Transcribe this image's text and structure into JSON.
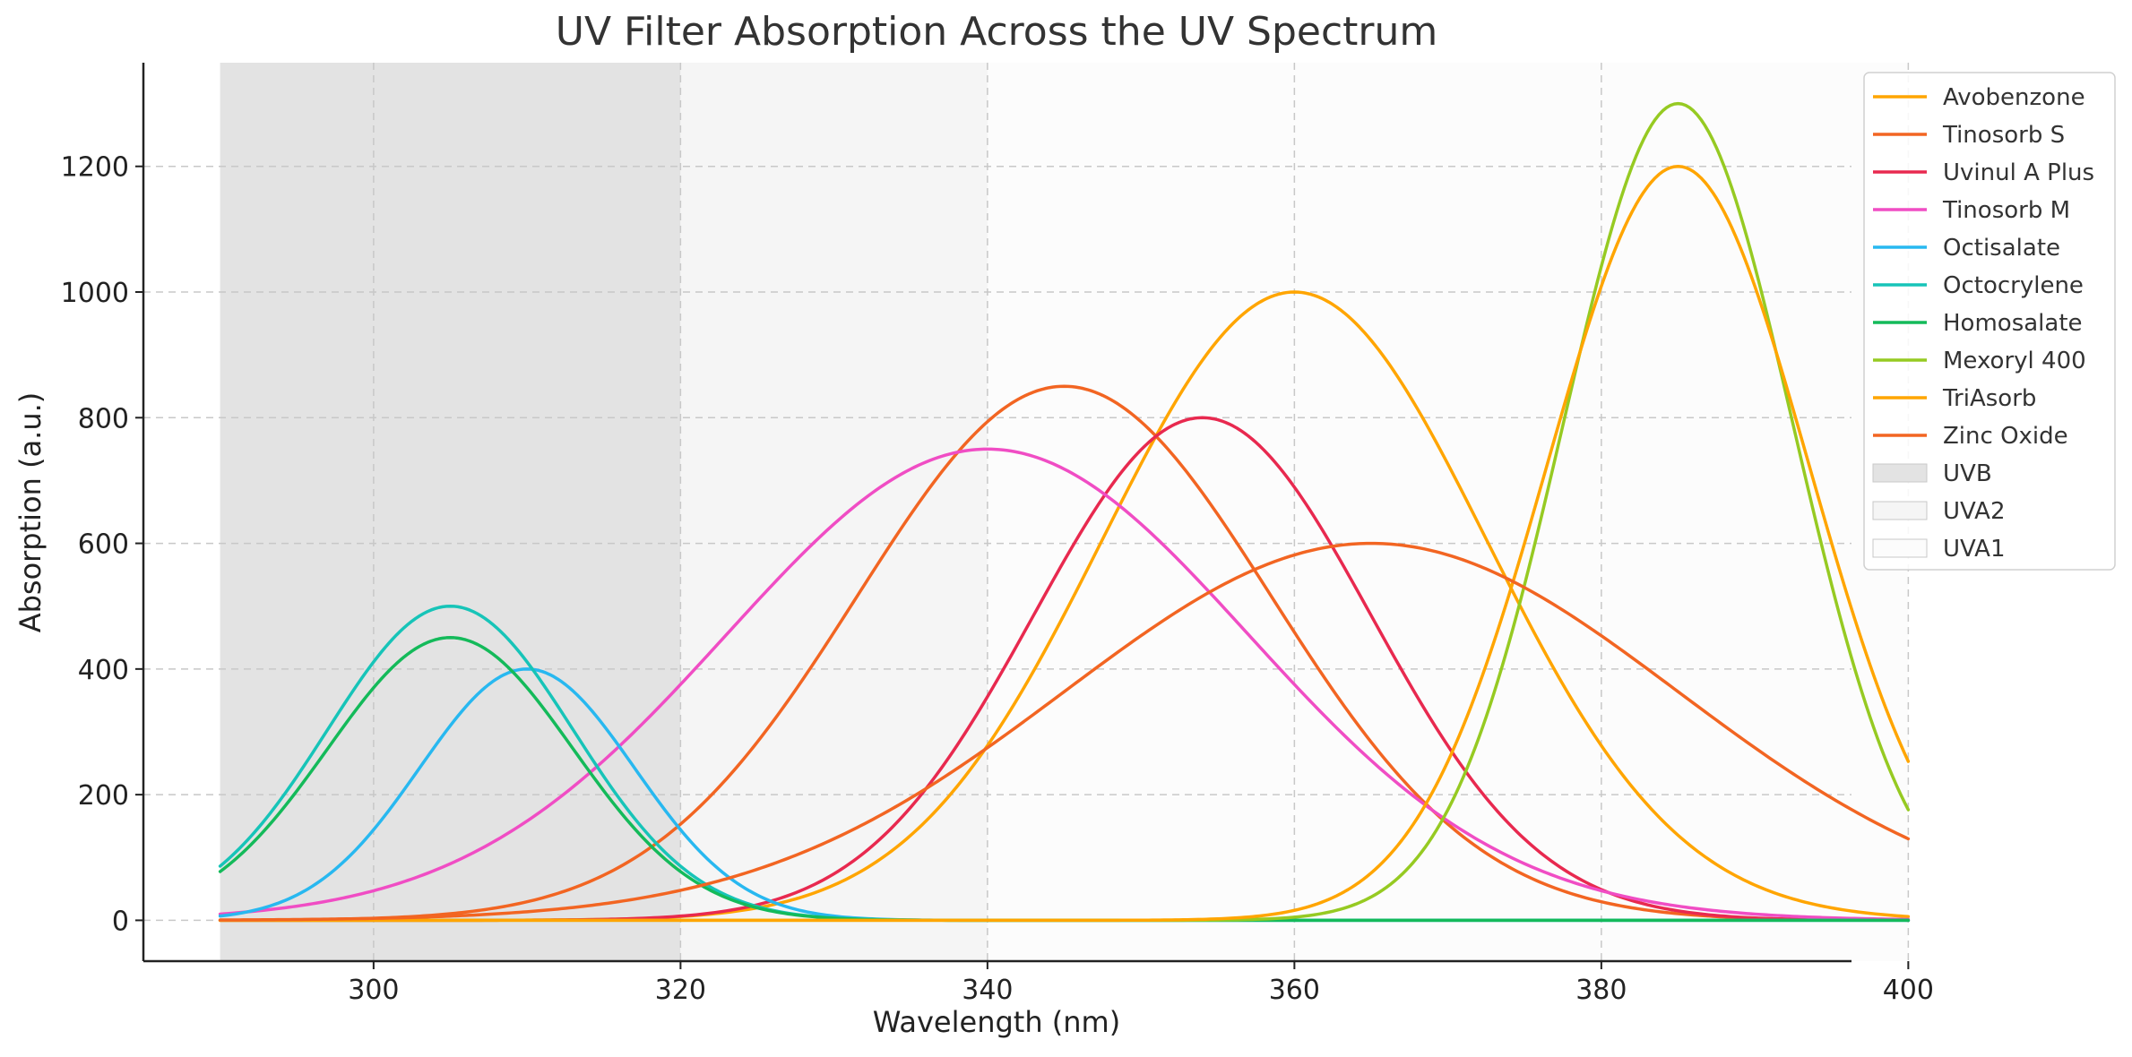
{
  "chart_data": {
    "type": "line",
    "title": "UV Filter Absorption Across the UV Spectrum",
    "xlabel": "Wavelength (nm)",
    "ylabel": "Absorption (a.u.)",
    "xlim": [
      285,
      396.3
    ],
    "ylim": [
      -65,
      1365
    ],
    "xticks": [
      300,
      320,
      340,
      360,
      380,
      400
    ],
    "yticks": [
      0,
      200,
      400,
      600,
      800,
      1000,
      1200
    ],
    "grid": true,
    "legend_position": "outside top-right",
    "x_range": [
      290,
      400
    ],
    "regions": [
      {
        "name": "UVB",
        "x_start": 290,
        "x_end": 320,
        "color": "#e3e3e3"
      },
      {
        "name": "UVA2",
        "x_start": 320,
        "x_end": 340,
        "color": "#f5f5f5"
      },
      {
        "name": "UVA1",
        "x_start": 340,
        "x_end": 400,
        "color": "#fcfcfc"
      }
    ],
    "series": [
      {
        "name": "Avobenzone",
        "color": "#FFA500",
        "peak": 360,
        "amplitude": 1000,
        "sigma": 12.5
      },
      {
        "name": "Tinosorb S",
        "color": "#F26522",
        "peak": 345,
        "amplitude": 850,
        "sigma": 13.5
      },
      {
        "name": "Uvinul A Plus",
        "color": "#E8294F",
        "peak": 354,
        "amplitude": 800,
        "sigma": 11
      },
      {
        "name": "Tinosorb M",
        "color": "#F04DC4",
        "peak": 340,
        "amplitude": 750,
        "sigma": 17
      },
      {
        "name": "Octisalate",
        "color": "#28B8F0",
        "peak": 310,
        "amplitude": 400,
        "sigma": 7
      },
      {
        "name": "Octocrylene",
        "color": "#17C4B8",
        "peak": 305,
        "amplitude": 500,
        "sigma": 8
      },
      {
        "name": "Homosalate",
        "color": "#14BA5A",
        "peak": 305,
        "amplitude": 450,
        "sigma": 8
      },
      {
        "name": "Mexoryl 400",
        "color": "#96CA22",
        "peak": 385,
        "amplitude": 1300,
        "sigma": 7.5
      },
      {
        "name": "TriAsorb",
        "color": "#FFA500",
        "peak": 385,
        "amplitude": 1200,
        "sigma": 8.5
      },
      {
        "name": "Zinc Oxide",
        "color": "#F26522",
        "peak": 365,
        "amplitude": 600,
        "sigma": 20
      }
    ]
  }
}
